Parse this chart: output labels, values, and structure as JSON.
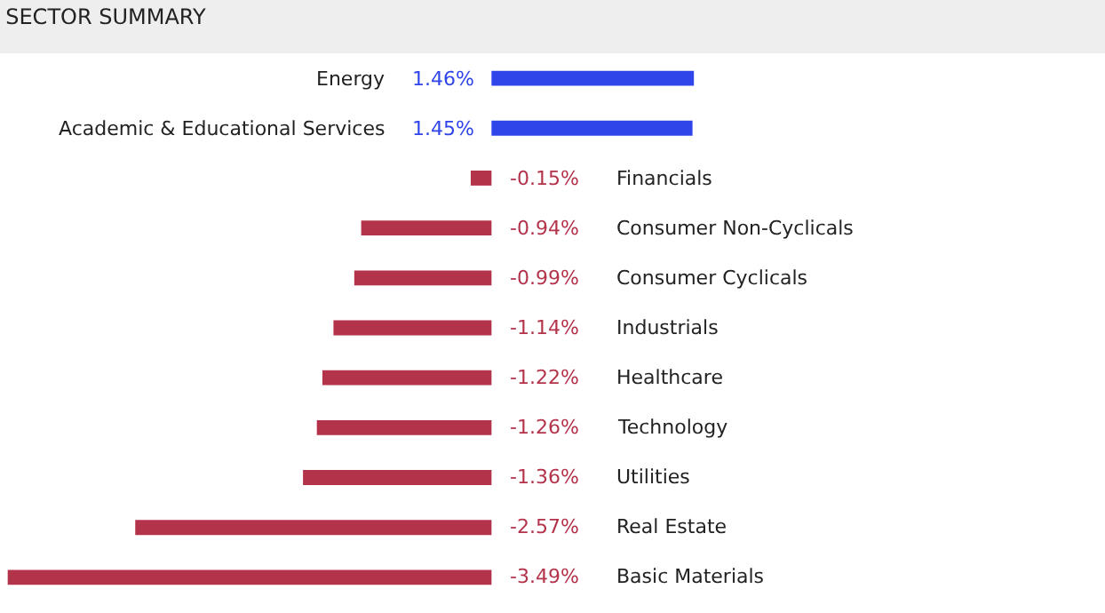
{
  "chart_data": {
    "type": "bar",
    "orientation": "horizontal",
    "title": "SECTOR SUMMARY",
    "categories": [
      "Energy",
      "Academic & Educational Services",
      "Financials",
      "Consumer Non-Cyclicals",
      "Consumer Cyclicals",
      "Industrials",
      "Healthcare",
      "Technology",
      "Utilities",
      "Real Estate",
      "Basic Materials"
    ],
    "values": [
      1.46,
      1.45,
      -0.15,
      -0.94,
      -0.99,
      -1.14,
      -1.22,
      -1.26,
      -1.36,
      -2.57,
      -3.49
    ],
    "value_labels": [
      "1.46%",
      "1.45%",
      "-0.15%",
      "-0.94%",
      "-0.99%",
      "-1.14%",
      "-1.22%",
      "-1.26%",
      "-1.36%",
      "-2.57%",
      "-3.49%"
    ],
    "colors": [
      "#2f45ea",
      "#2f45ea",
      "#b3334b",
      "#b3334b",
      "#b3334b",
      "#b3334b",
      "#b3334b",
      "#b3334b",
      "#b3334b",
      "#b3334b",
      "#b3334b"
    ],
    "xlim": [
      -3.52,
      4.4
    ],
    "tick_labels": false
  }
}
